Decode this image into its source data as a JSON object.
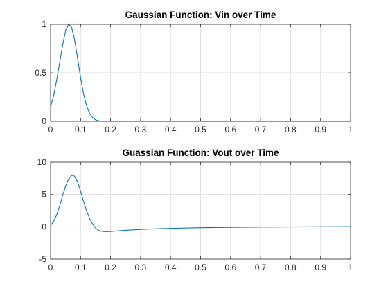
{
  "chart_data": [
    {
      "type": "line",
      "title": "Gaussian Function: Vin over Time",
      "xlabel": "",
      "ylabel": "",
      "xlim": [
        0,
        1
      ],
      "ylim": [
        0,
        1
      ],
      "xticks": [
        0,
        0.1,
        0.2,
        0.3,
        0.4,
        0.5,
        0.6,
        0.7,
        0.8,
        0.9,
        1
      ],
      "xtick_labels": [
        "0",
        "0.1",
        "0.2",
        "0.3",
        "0.4",
        "0.5",
        "0.6",
        "0.7",
        "0.8",
        "0.9",
        "1"
      ],
      "yticks": [
        0,
        0.5,
        1
      ],
      "ytick_labels": [
        "0",
        "0.5",
        "1"
      ],
      "grid": true,
      "series": [
        {
          "color": "#0072BD",
          "x": [
            0,
            0.01,
            0.02,
            0.03,
            0.04,
            0.05,
            0.06,
            0.07,
            0.08,
            0.09,
            0.1,
            0.11,
            0.12,
            0.13,
            0.14,
            0.15,
            0.16,
            0.17,
            0.18,
            0.2,
            0.25,
            0.3,
            0.4,
            0.5,
            0.6,
            0.7,
            0.8,
            0.9,
            1.0
          ],
          "y": [
            0.15,
            0.26,
            0.42,
            0.6,
            0.78,
            0.93,
            1.0,
            0.97,
            0.84,
            0.65,
            0.45,
            0.28,
            0.16,
            0.08,
            0.04,
            0.015,
            0.006,
            0.002,
            0.001,
            0,
            0,
            0,
            0,
            0,
            0,
            0,
            0,
            0,
            0
          ]
        }
      ]
    },
    {
      "type": "line",
      "title": "Guassian Function: Vout over Time",
      "xlabel": "",
      "ylabel": "",
      "xlim": [
        0,
        1
      ],
      "ylim": [
        -5,
        10
      ],
      "xticks": [
        0,
        0.1,
        0.2,
        0.3,
        0.4,
        0.5,
        0.6,
        0.7,
        0.8,
        0.9,
        1
      ],
      "xtick_labels": [
        "0",
        "0.1",
        "0.2",
        "0.3",
        "0.4",
        "0.5",
        "0.6",
        "0.7",
        "0.8",
        "0.9",
        "1"
      ],
      "yticks": [
        -5,
        0,
        5,
        10
      ],
      "ytick_labels": [
        "-5",
        "0",
        "5",
        "10"
      ],
      "grid": true,
      "series": [
        {
          "color": "#0072BD",
          "x": [
            0,
            0.01,
            0.02,
            0.03,
            0.04,
            0.05,
            0.06,
            0.07,
            0.075,
            0.08,
            0.09,
            0.1,
            0.11,
            0.12,
            0.13,
            0.14,
            0.15,
            0.16,
            0.17,
            0.18,
            0.19,
            0.2,
            0.22,
            0.25,
            0.3,
            0.35,
            0.4,
            0.5,
            0.6,
            0.7,
            0.8,
            0.9,
            1.0
          ],
          "y": [
            0.2,
            0.8,
            1.8,
            3.2,
            4.8,
            6.3,
            7.4,
            7.9,
            8.0,
            7.8,
            6.9,
            5.5,
            3.9,
            2.5,
            1.3,
            0.4,
            -0.2,
            -0.55,
            -0.7,
            -0.75,
            -0.75,
            -0.72,
            -0.65,
            -0.55,
            -0.42,
            -0.32,
            -0.25,
            -0.15,
            -0.09,
            -0.05,
            -0.02,
            0.0,
            0.02
          ]
        }
      ]
    }
  ]
}
